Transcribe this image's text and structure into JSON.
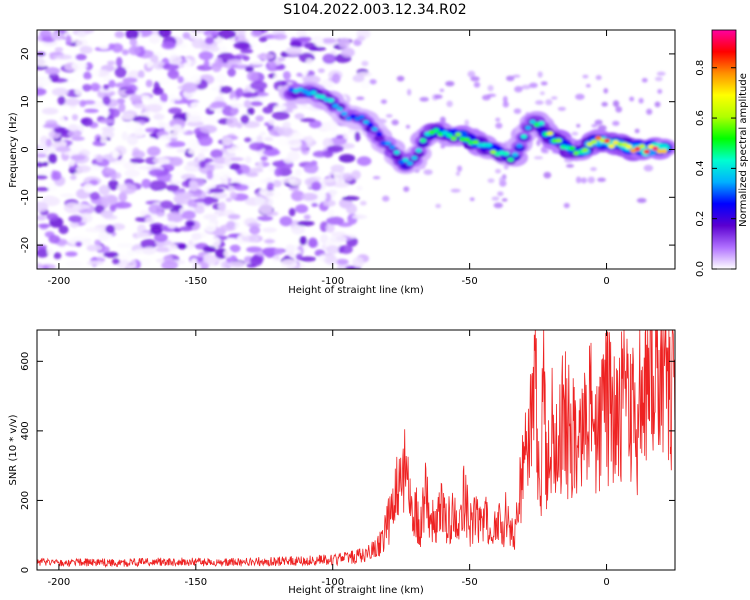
{
  "page": {
    "title": "S104.2022.003.12.34.R02"
  },
  "chart_data": [
    {
      "type": "heatmap",
      "title": "S104.2022.003.12.34.R02",
      "xlabel": "Height of straight line (km)",
      "ylabel": "Frequency (Hz)",
      "xlim": [
        -208,
        25
      ],
      "ylim": [
        -25,
        25
      ],
      "xticks": [
        -200,
        -150,
        -100,
        -50,
        0
      ],
      "yticks": [
        -20,
        -10,
        0,
        10,
        20
      ],
      "colorbar": {
        "label": "Normalized spectral amplitude",
        "range": [
          0.0,
          0.95
        ],
        "ticks": [
          0.0,
          0.2,
          0.4,
          0.6,
          0.8
        ],
        "colors": [
          "#ffffff",
          "#b070ff",
          "#5a00d0",
          "#0000ff",
          "#00b0ff",
          "#00ffd0",
          "#00ff00",
          "#b0ff00",
          "#ffff00",
          "#ff9000",
          "#ff0000",
          "#ff00a0"
        ]
      },
      "ridge": {
        "x": [
          -115,
          -108,
          -100,
          -95,
          -88,
          -82,
          -78,
          -74,
          -70,
          -66,
          -62,
          -58,
          -54,
          -50,
          -46,
          -42,
          -38,
          -34,
          -30,
          -27,
          -24,
          -21,
          -18,
          -14,
          -10,
          -6,
          -2,
          2,
          6,
          10,
          14,
          18,
          22
        ],
        "y": [
          12,
          12,
          10,
          7,
          6,
          2,
          0,
          -3,
          -2,
          3,
          4,
          3,
          3,
          2,
          1,
          0,
          -1,
          -2,
          3,
          6,
          5,
          3,
          2,
          0,
          -1,
          1,
          2,
          1,
          1,
          0,
          0,
          0,
          0
        ],
        "amplitude": [
          0.35,
          0.4,
          0.4,
          0.3,
          0.35,
          0.3,
          0.35,
          0.4,
          0.35,
          0.45,
          0.55,
          0.5,
          0.55,
          0.6,
          0.5,
          0.55,
          0.5,
          0.4,
          0.45,
          0.4,
          0.5,
          0.6,
          0.65,
          0.55,
          0.6,
          0.7,
          0.8,
          0.85,
          0.75,
          0.9,
          0.8,
          0.85,
          0.7
        ]
      }
    },
    {
      "type": "line",
      "xlabel": "Height of straight line (km)",
      "ylabel": "SNR (10 * v/v)",
      "xlim": [
        -208,
        25
      ],
      "ylim": [
        0,
        690
      ],
      "xticks": [
        -200,
        -150,
        -100,
        -50,
        0
      ],
      "yticks": [
        0,
        200,
        400,
        600
      ],
      "color": "#ee2222",
      "series": [
        {
          "x": [
            -208,
            -200,
            -190,
            -180,
            -170,
            -160,
            -150,
            -140,
            -130,
            -120,
            -110,
            -100,
            -95,
            -90,
            -85,
            -82,
            -80,
            -78,
            -76,
            -74,
            -72,
            -70,
            -68,
            -66,
            -64,
            -62,
            -60,
            -58,
            -56,
            -54,
            -52,
            -50,
            -48,
            -46,
            -44,
            -42,
            -40,
            -38,
            -36,
            -34,
            -32,
            -30,
            -28,
            -26,
            -25,
            -24,
            -23,
            -22,
            -21,
            -20,
            -18,
            -16,
            -14,
            -12,
            -10,
            -8,
            -6,
            -4,
            -2,
            0,
            2,
            4,
            6,
            8,
            10,
            11,
            12,
            13,
            14,
            15,
            16,
            18,
            20,
            22,
            24
          ],
          "y": [
            22,
            20,
            22,
            21,
            22,
            24,
            23,
            22,
            24,
            25,
            26,
            30,
            34,
            40,
            58,
            80,
            130,
            180,
            240,
            300,
            200,
            180,
            120,
            220,
            160,
            120,
            200,
            140,
            160,
            100,
            220,
            130,
            150,
            120,
            160,
            90,
            150,
            120,
            170,
            80,
            200,
            300,
            420,
            520,
            320,
            200,
            620,
            300,
            360,
            420,
            380,
            440,
            400,
            380,
            330,
            400,
            440,
            420,
            450,
            470,
            460,
            440,
            500,
            470,
            430,
            290,
            620,
            520,
            540,
            690,
            620,
            560,
            640,
            600,
            560
          ]
        }
      ]
    }
  ]
}
